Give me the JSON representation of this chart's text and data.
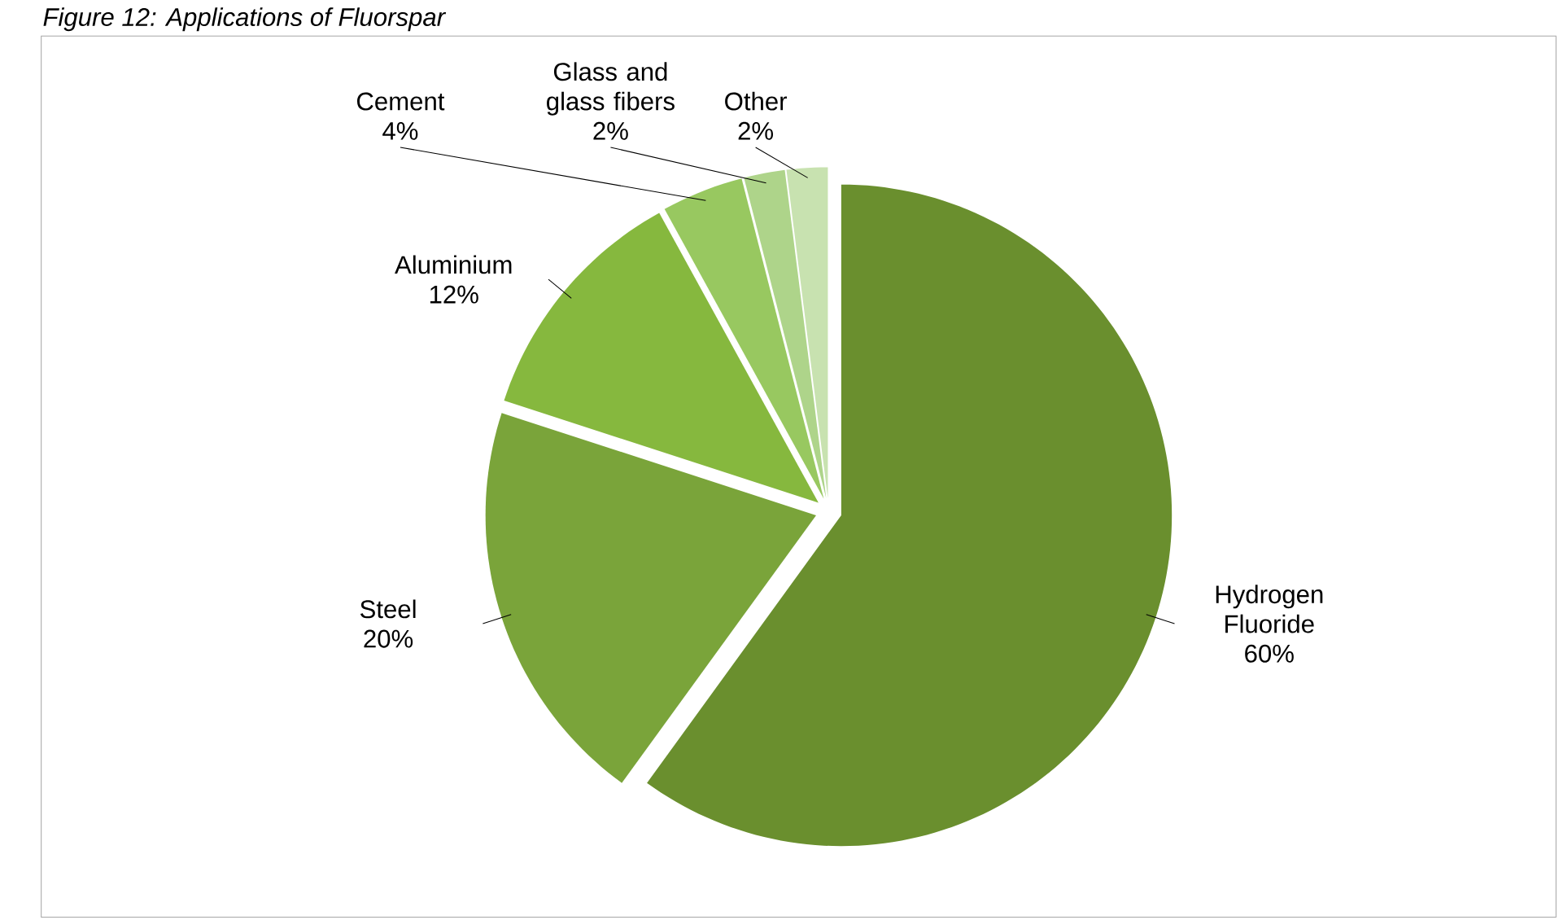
{
  "chart_data": {
    "type": "pie",
    "title": "Figure 12: Applications of Fluorspar",
    "categories": [
      "Hydrogen Fluoride",
      "Steel",
      "Aluminium",
      "Cement",
      "Glass and glass fibers",
      "Other"
    ],
    "values": [
      60,
      20,
      12,
      4,
      2,
      2
    ],
    "value_labels": [
      "60%",
      "20%",
      "12%",
      "4%",
      "2%",
      "2%"
    ],
    "colors": [
      "#6a8f2e",
      "#7aa43a",
      "#86b83e",
      "#98c860",
      "#aed48a",
      "#c8e2b0"
    ]
  }
}
